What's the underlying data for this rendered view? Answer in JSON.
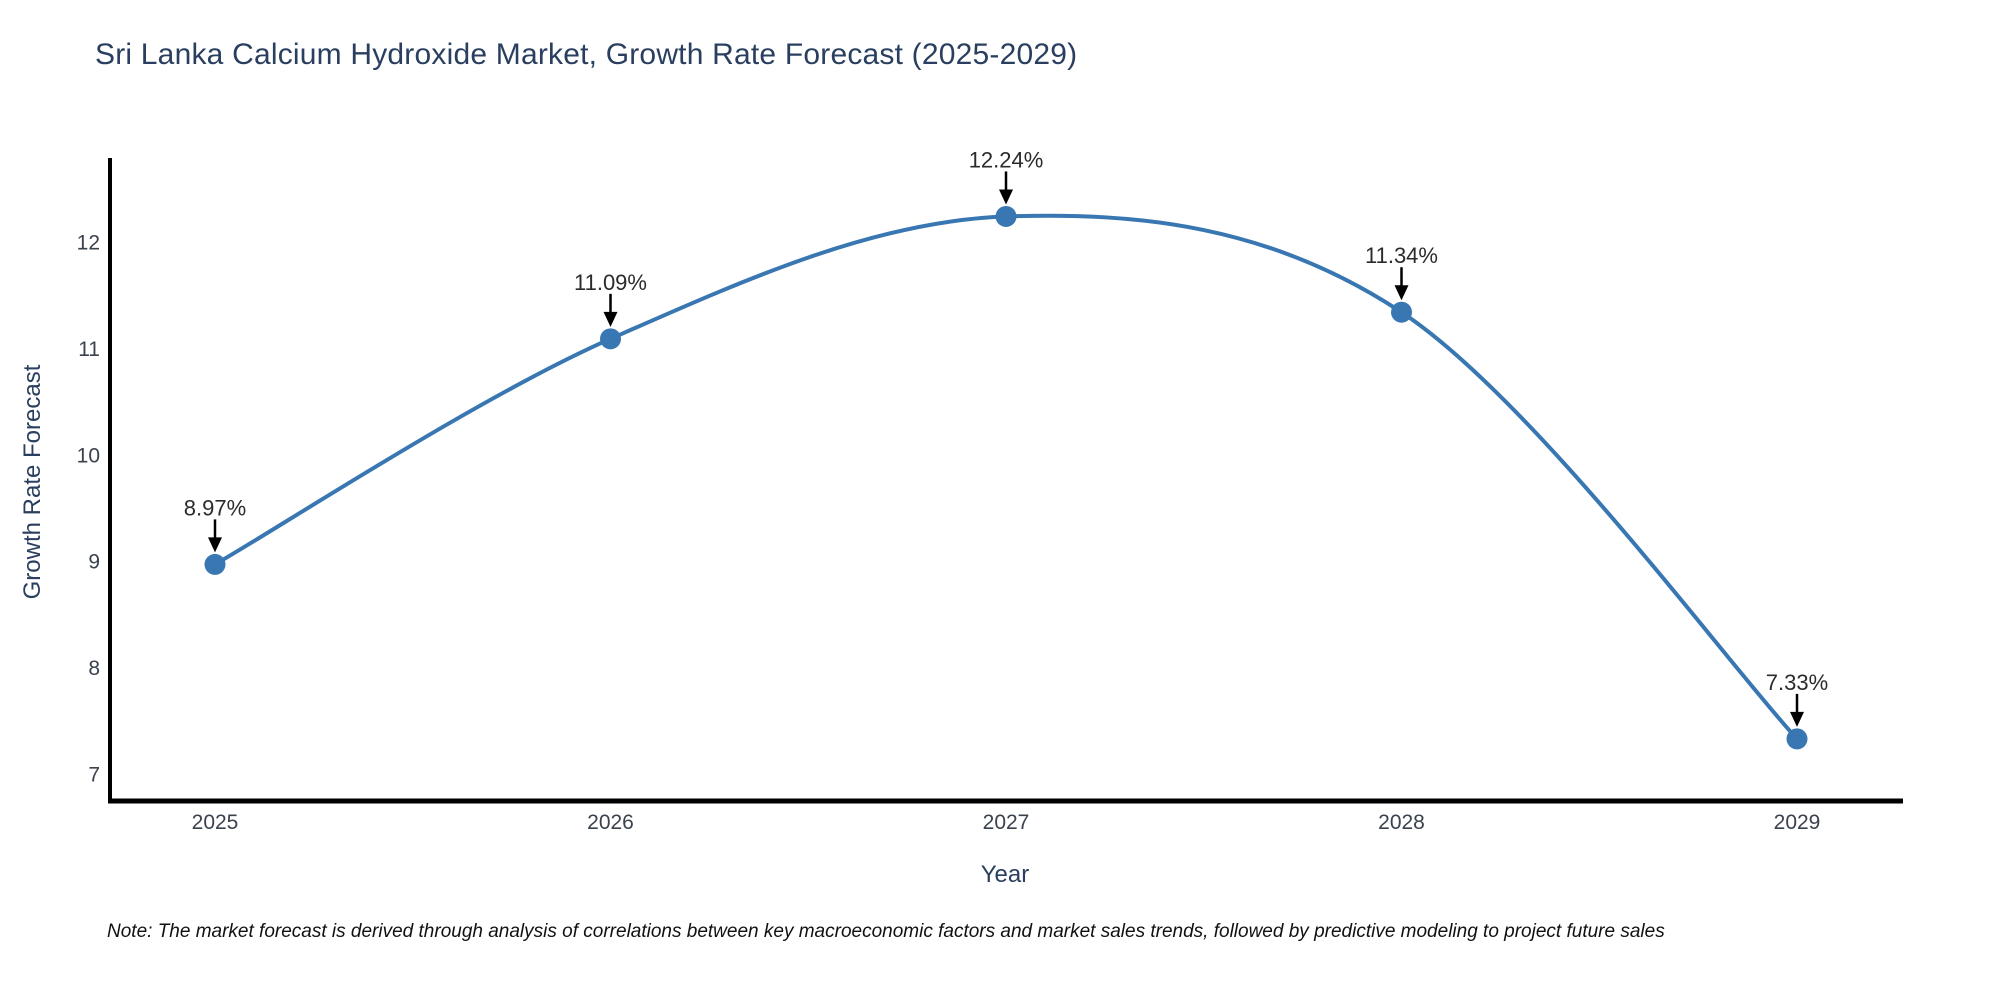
{
  "title": "Sri Lanka Calcium Hydroxide Market, Growth Rate Forecast (2025-2029)",
  "note": "Note: The market forecast is derived through analysis of correlations between key macroeconomic factors and market sales trends, followed by predictive modeling to project future sales",
  "chart_data": {
    "type": "line",
    "title": "Sri Lanka Calcium Hydroxide Market, Growth Rate Forecast (2025-2029)",
    "xlabel": "Year",
    "ylabel": "Growth Rate Forecast",
    "categories": [
      "2025",
      "2026",
      "2027",
      "2028",
      "2029"
    ],
    "series": [
      {
        "name": "Growth Rate Forecast",
        "values": [
          8.97,
          11.09,
          12.24,
          11.34,
          7.33
        ]
      }
    ],
    "point_labels": [
      "8.97%",
      "11.09%",
      "12.24%",
      "11.34%",
      "7.33%"
    ],
    "yticks": [
      7,
      8,
      9,
      10,
      11,
      12
    ],
    "ylim": [
      6.75,
      12.9
    ],
    "grid": false,
    "legend_position": "none",
    "line_shape": "spline",
    "marker": "circle",
    "annotations": "value labels with down arrows above each point",
    "colors": {
      "line": "#3877b1",
      "marker": "#3877b1",
      "title_text": "#2a3f5f",
      "axis_title_text": "#2a3f5f",
      "tick_text": "#3a424d",
      "annotation_text": "#2b2b2b",
      "arrow": "#000000",
      "axis_line": "#000000",
      "background": "#ffffff"
    }
  }
}
